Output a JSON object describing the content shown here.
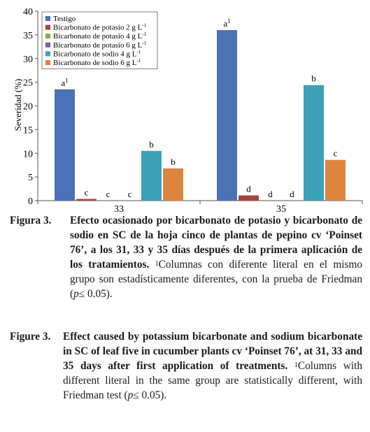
{
  "chart_data": {
    "type": "bar",
    "ylabel": "Severidad (%)",
    "ylim": [
      0,
      40
    ],
    "yticks": [
      0,
      5,
      10,
      15,
      20,
      25,
      30,
      35,
      40
    ],
    "categories": [
      "33",
      "35"
    ],
    "grid": false,
    "legend_position": "top-left",
    "series": [
      {
        "name": "Testigo",
        "color": "#4a72b4",
        "values": [
          23.5,
          36
        ],
        "labels": [
          "a",
          "a"
        ]
      },
      {
        "name": "Bicarbonato de potasio 2 g L",
        "color": "#a84438",
        "values": [
          0.35,
          1.1
        ],
        "labels": [
          "c",
          "d"
        ]
      },
      {
        "name": "Bicarbonato de potasio 4 g L",
        "color": "#86ac4e",
        "values": [
          0,
          0
        ],
        "labels": [
          "c",
          "d"
        ]
      },
      {
        "name": "Bicarbonato de potasio 6 g L",
        "color": "#7a5fa0",
        "values": [
          0,
          0
        ],
        "labels": [
          "c",
          "d"
        ]
      },
      {
        "name": "Bicarbonato de sodio  4 g L",
        "color": "#3ba2b8",
        "values": [
          10.5,
          24.4
        ],
        "labels": [
          "b",
          "b"
        ]
      },
      {
        "name": "Bicarbonato de sodio 6 g L",
        "color": "#dd8440",
        "values": [
          6.8,
          8.6
        ],
        "labels": [
          "b",
          "c"
        ]
      }
    ],
    "unit_superscript": "-1",
    "label_superscript": "1"
  },
  "caption_es": {
    "label": "Figura 3.",
    "title": "Efecto ocasionado por bicarbonato de potasio y bicarbonato de sodio en SC de la hoja cinco de plantas de pepino cv ‘Poinset 76’, a los 31, 33 y 35 días después de la primera aplicación de los tratamientos.",
    "note_sup": "1",
    "note_a": "Columnas con diferente literal en el mismo grupo son estadísticamente diferentes, con la prueba de Friedman (",
    "note_p": "p",
    "note_b": "≤ 0.05)."
  },
  "caption_en": {
    "label": "Figure 3.",
    "title": "Effect caused by potassium bicarbonate and sodium bicarbonate in SC of leaf five in cucumber plants cv ‘Poinset 76’, at 31, 33 and 35 days after first application of treatments.",
    "note_sup": "1",
    "note_a": "Columns with different literal in the same group are statistically different, with Friedman test (",
    "note_p": "p",
    "note_b": "≤ 0.05)."
  }
}
